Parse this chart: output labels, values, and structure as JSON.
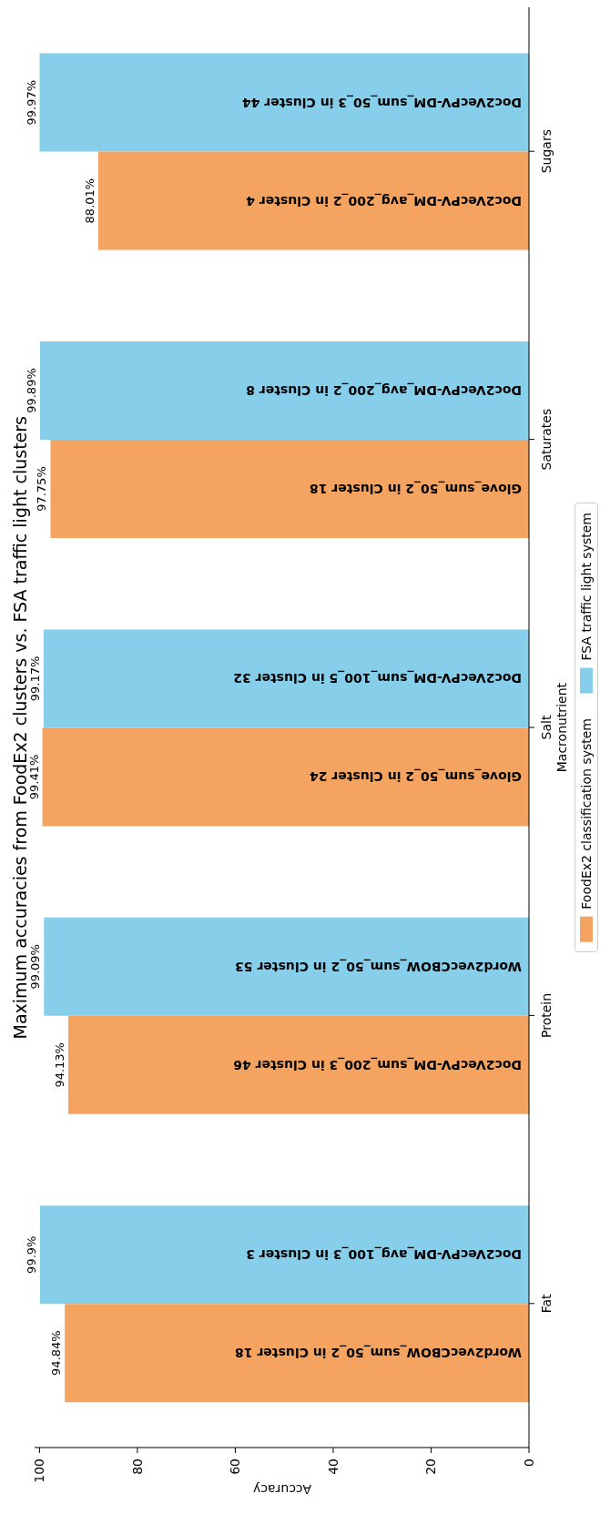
{
  "chart_data": {
    "type": "bar",
    "orientation": "horizontal",
    "title": "Maximum accuracies from FoodEx2 clusters vs. FSA traffic light clusters",
    "xlabel": "Accuracy",
    "ylabel": "Macronutrient",
    "categories": [
      "Sugars",
      "Saturates",
      "Salt",
      "Protein",
      "Fat"
    ],
    "series": [
      {
        "name": "FSA traffic light system",
        "color": "#87ceeb",
        "values": [
          99.97,
          99.89,
          99.17,
          99.09,
          99.9
        ],
        "value_labels": [
          "99.97%",
          "99.89%",
          "99.17%",
          "99.09%",
          "99.9%"
        ]
      },
      {
        "name": "FoodEx2 classification system",
        "color": "#f4a460",
        "values": [
          88.01,
          97.75,
          99.41,
          94.13,
          94.84
        ],
        "value_labels": [
          "88.01%",
          "97.75%",
          "99.41%",
          "94.13%",
          "94.84%"
        ]
      }
    ],
    "annotations": [
      "Doc2VecPV-DM_sum_50_3 in Cluster 44",
      "Doc2VecPV-DM_avg_200_2 in Cluster 4",
      "Doc2VecPV-DM_avg_200_2 in Cluster 8",
      "Glove_sum_50_2 in Cluster 18",
      "Doc2VecPV-DM_sum_100_5 in Cluster 32",
      "Glove_sum_50_2 in Cluster 24",
      "Word2vecCBOW_sum_50_2 in Cluster 53",
      "Doc2VecPV-DM_sum_200_3 in Cluster 46",
      "Doc2VecPV-DM_avg_100_3 in Cluster 3",
      "Word2vecCBOW_sum_50_2 in Cluster 18"
    ],
    "xlim": [
      101,
      0
    ],
    "xticks": [
      100,
      80,
      60,
      40,
      20,
      0
    ],
    "grid": false,
    "legend": "right"
  }
}
